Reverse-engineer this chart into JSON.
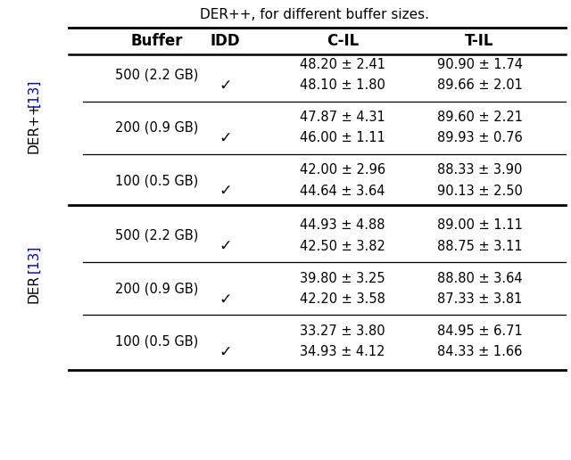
{
  "title": "DER++, for different buffer sizes.",
  "sections": [
    {
      "label_main": "DER++",
      "label_cite": " [13]",
      "groups": [
        {
          "buffer": "500 (2.2 GB)",
          "rows": [
            {
              "idd": "",
              "cil": "48.20 ± 2.41",
              "til": "90.90 ± 1.74"
            },
            {
              "idd": "✓",
              "cil": "48.10 ± 1.80",
              "til": "89.66 ± 2.01"
            }
          ]
        },
        {
          "buffer": "200 (0.9 GB)",
          "rows": [
            {
              "idd": "",
              "cil": "47.87 ± 4.31",
              "til": "89.60 ± 2.21"
            },
            {
              "idd": "✓",
              "cil": "46.00 ± 1.11",
              "til": "89.93 ± 0.76"
            }
          ]
        },
        {
          "buffer": "100 (0.5 GB)",
          "rows": [
            {
              "idd": "",
              "cil": "42.00 ± 2.96",
              "til": "88.33 ± 3.90"
            },
            {
              "idd": "✓",
              "cil": "44.64 ± 3.64",
              "til": "90.13 ± 2.50"
            }
          ]
        }
      ]
    },
    {
      "label_main": "DER",
      "label_cite": " [13]",
      "groups": [
        {
          "buffer": "500 (2.2 GB)",
          "rows": [
            {
              "idd": "",
              "cil": "44.93 ± 4.88",
              "til": "89.00 ± 1.11"
            },
            {
              "idd": "✓",
              "cil": "42.50 ± 3.82",
              "til": "88.75 ± 3.11"
            }
          ]
        },
        {
          "buffer": "200 (0.9 GB)",
          "rows": [
            {
              "idd": "",
              "cil": "39.80 ± 3.25",
              "til": "88.80 ± 3.64"
            },
            {
              "idd": "✓",
              "cil": "42.20 ± 3.58",
              "til": "87.33 ± 3.81"
            }
          ]
        },
        {
          "buffer": "100 (0.5 GB)",
          "rows": [
            {
              "idd": "",
              "cil": "33.27 ± 3.80",
              "til": "84.95 ± 6.71"
            },
            {
              "idd": "✓",
              "cil": "34.93 ± 4.12",
              "til": "84.33 ± 1.66"
            }
          ]
        }
      ]
    }
  ],
  "fig_width": 6.4,
  "fig_height": 5.16,
  "dpi": 100,
  "background_color": "#ffffff",
  "text_color": "#000000",
  "cite_color": "#0000cc",
  "header_fontsize": 12,
  "body_fontsize": 10.5,
  "title_fontsize": 11,
  "label_fontsize": 11
}
